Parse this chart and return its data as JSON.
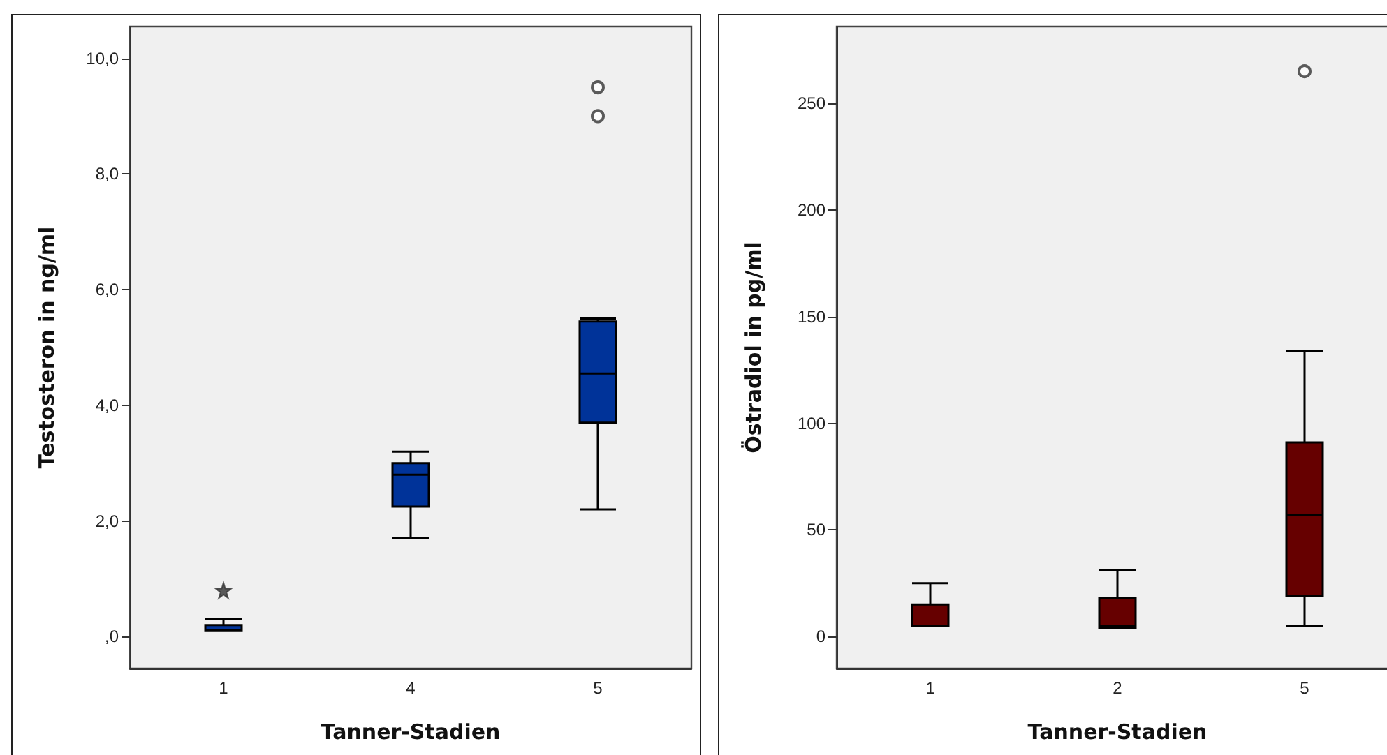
{
  "chart_data": [
    {
      "type": "box",
      "categories": [
        "1",
        "4",
        "5"
      ],
      "xlabel": "Tanner-Stadien",
      "ylabel": "Testosteron in ng/ml",
      "ylim": [
        -0.55,
        10.55
      ],
      "yticks": [
        {
          "value": 0,
          "label": ",0"
        },
        {
          "value": 2,
          "label": "2,0"
        },
        {
          "value": 4,
          "label": "4,0"
        },
        {
          "value": 6,
          "label": "6,0"
        },
        {
          "value": 8,
          "label": "8,0"
        },
        {
          "value": 10,
          "label": "10,0"
        }
      ],
      "grid": false,
      "marker": "circle",
      "series": [
        {
          "type": "box",
          "color": "#003399",
          "boxes": [
            {
              "low": 0.1,
              "q1": 0.1,
              "median": 0.12,
              "q3": 0.2,
              "high": 0.3
            },
            {
              "low": 1.7,
              "q1": 2.25,
              "median": 2.8,
              "q3": 3.0,
              "high": 3.2
            },
            {
              "low": 2.2,
              "q1": 3.7,
              "median": 4.55,
              "q3": 5.45,
              "high": 5.5,
              "outliers": [
                9.0,
                9.5
              ]
            }
          ]
        },
        {
          "type": "scatter",
          "marker": "star",
          "color": "#333333",
          "x": [
            "1"
          ],
          "values": [
            0.8
          ]
        }
      ]
    },
    {
      "type": "box",
      "categories": [
        "1",
        "2",
        "5"
      ],
      "xlabel": "Tanner-Stadien",
      "ylabel": "Östradiol in pg/ml",
      "ylim": [
        -15,
        286
      ],
      "yticks": [
        0,
        50,
        100,
        150,
        200,
        250
      ],
      "grid": false,
      "marker": "circle",
      "series": [
        {
          "type": "box",
          "color": "#660000",
          "boxes": [
            {
              "low": 5,
              "q1": 5,
              "median": 5,
              "q3": 15,
              "high": 25
            },
            {
              "low": 4,
              "q1": 4,
              "median": 5,
              "q3": 18,
              "high": 31
            },
            {
              "low": 5,
              "q1": 19,
              "median": 57,
              "q3": 91,
              "high": 134,
              "outliers": [
                265
              ]
            }
          ]
        }
      ]
    }
  ]
}
